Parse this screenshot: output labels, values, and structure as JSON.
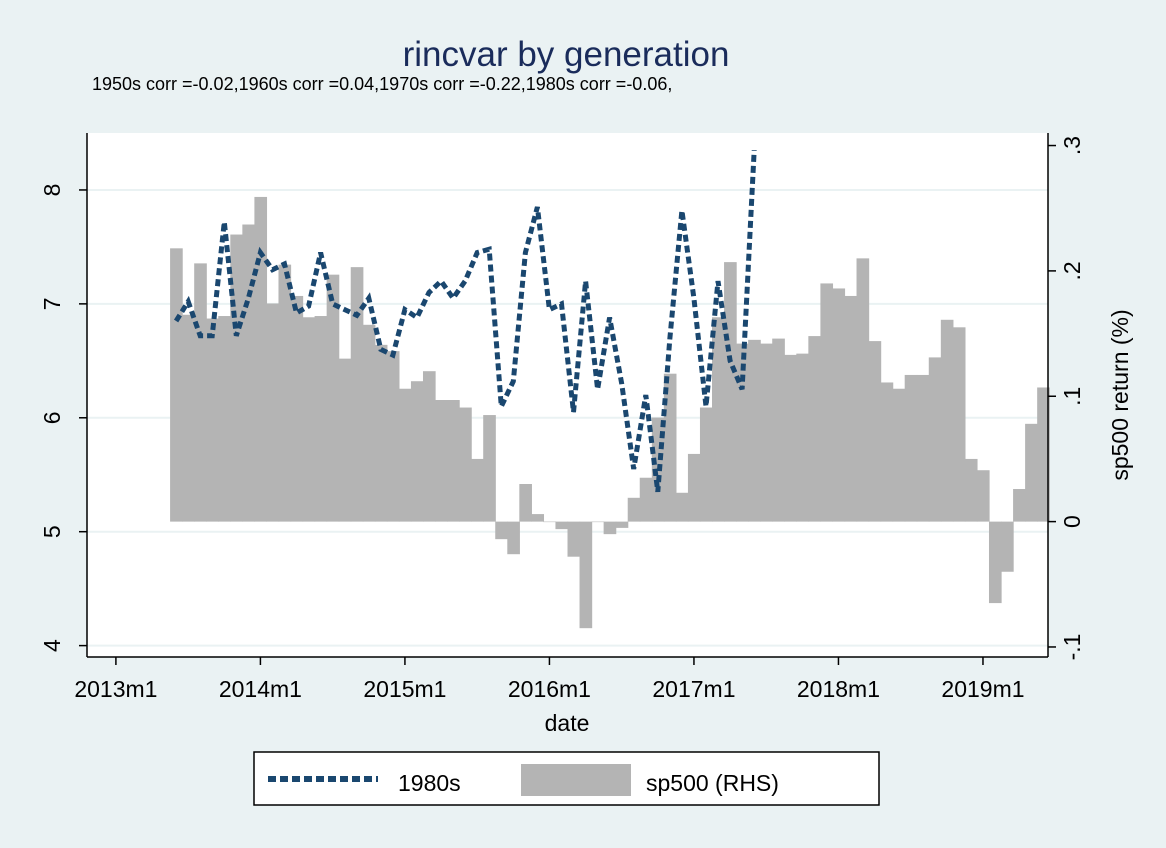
{
  "chart_data": {
    "type": "bar+line",
    "title": "rincvar by generation",
    "subtitle": "1950s corr =-0.02,1960s corr =0.04,1970s corr =-0.22,1980s corr =-0.06,",
    "xlabel": "date",
    "ylabel_left": "",
    "ylabel_right": "sp500 return (%)",
    "x_ticks": [
      "2013m1",
      "2014m1",
      "2015m1",
      "2016m1",
      "2017m1",
      "2018m1",
      "2019m1"
    ],
    "y_left_ticks": [
      "4",
      "5",
      "6",
      "7",
      "8"
    ],
    "y_right_ticks": [
      "-.1",
      "0",
      ".1",
      ".2",
      ".3"
    ],
    "y_left_range": [
      3.9,
      8.5
    ],
    "y_right_range": [
      -0.108,
      0.31
    ],
    "x_range": [
      -0.2,
      6.45
    ],
    "legend": [
      {
        "label": "1980s",
        "style": "dashed-line",
        "color": "#1a476f"
      },
      {
        "label": "sp500 (RHS)",
        "style": "bar",
        "color": "#b4b4b4"
      }
    ],
    "legend_position": "bottom",
    "grid": true,
    "colors": {
      "background": "#eaf2f3",
      "plot": "#ffffff",
      "line": "#1a476f",
      "bar": "#b4b4b4",
      "grid": "#eaf2f3",
      "title": "#1a2c5b"
    },
    "series": [
      {
        "name": "sp500 (RHS)",
        "axis": "right",
        "start_month": "2013m6",
        "values": [
          0.218,
          0.165,
          0.206,
          0.162,
          0.164,
          0.229,
          0.237,
          0.259,
          0.174,
          0.205,
          0.18,
          0.163,
          0.164,
          0.197,
          0.13,
          0.203,
          0.157,
          0.141,
          0.136,
          0.106,
          0.112,
          0.12,
          0.097,
          0.097,
          0.091,
          0.05,
          0.085,
          -0.014,
          -0.026,
          0.03,
          0.006,
          0.0,
          -0.006,
          -0.028,
          -0.085,
          0.0,
          -0.01,
          -0.005,
          0.019,
          0.035,
          0.083,
          0.118,
          0.023,
          0.054,
          0.091,
          0.163,
          0.207,
          0.142,
          0.145,
          0.142,
          0.146,
          0.133,
          0.134,
          0.148,
          0.19,
          0.186,
          0.18,
          0.21,
          0.144,
          0.111,
          0.106,
          0.117,
          0.117,
          0.131,
          0.161,
          0.155,
          0.05,
          0.041,
          -0.065,
          -0.04,
          0.026,
          0.078,
          0.107
        ]
      },
      {
        "name": "1980s",
        "axis": "left",
        "start_month": "2013m6",
        "values": [
          6.85,
          7.02,
          6.72,
          6.72,
          7.72,
          6.72,
          7.05,
          7.45,
          7.3,
          7.35,
          6.92,
          6.98,
          7.45,
          7.0,
          6.95,
          6.9,
          7.05,
          6.6,
          6.55,
          6.95,
          6.88,
          7.1,
          7.2,
          7.05,
          7.2,
          7.45,
          7.48,
          6.1,
          6.32,
          7.45,
          7.85,
          6.95,
          7.0,
          6.05,
          7.2,
          6.25,
          6.88,
          6.3,
          5.55,
          6.2,
          5.35,
          6.7,
          7.82,
          7.05,
          6.1,
          7.2,
          6.5,
          6.25,
          8.35,
          null,
          null,
          null,
          null,
          null,
          null,
          null,
          null,
          null,
          null,
          null,
          null,
          null,
          null,
          null,
          null,
          null,
          null,
          null,
          null,
          null,
          null,
          null,
          null
        ]
      }
    ]
  }
}
